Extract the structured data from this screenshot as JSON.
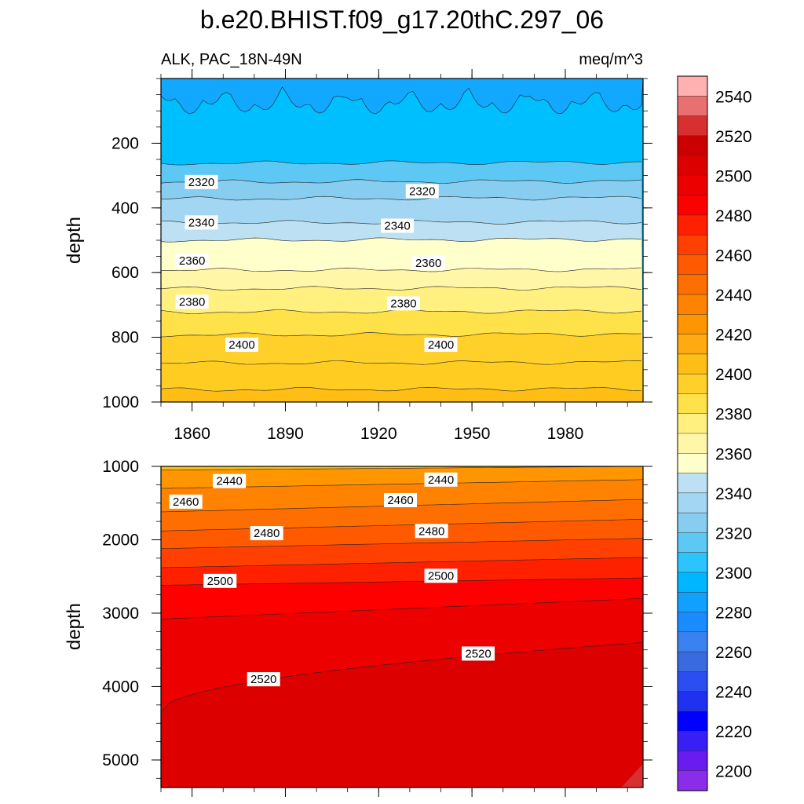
{
  "chart_data": [
    {
      "type": "contour",
      "title": "b.e20.BHIST.f09_g17.20thC.297_06",
      "subtitle_left": "ALK, PAC_18N-49N",
      "subtitle_right": "meq/m^3",
      "xlabel": "",
      "ylabel": "depth",
      "xlim": [
        1850,
        2005
      ],
      "ylim": [
        1000,
        0
      ],
      "x_ticks": [
        1860,
        1890,
        1920,
        1950,
        1980
      ],
      "x_tick_labels": [
        "1860",
        "1890",
        "1920",
        "1950",
        "1980"
      ],
      "y_ticks": [
        200,
        400,
        600,
        800,
        1000
      ],
      "y_tick_labels": [
        "200",
        "400",
        "600",
        "800",
        "1000"
      ],
      "contour_lines": [
        {
          "level": 2320,
          "depth": 262
        },
        {
          "level": 2330,
          "depth": 320
        },
        {
          "level": 2340,
          "depth": 372
        },
        {
          "level": 2350,
          "depth": 446
        },
        {
          "level": 2360,
          "depth": 500
        },
        {
          "level": 2370,
          "depth": 593
        },
        {
          "level": 2380,
          "depth": 650
        },
        {
          "level": 2390,
          "depth": 722
        },
        {
          "level": 2400,
          "depth": 793
        },
        {
          "level": 2410,
          "depth": 880
        },
        {
          "level": 2420,
          "depth": 962
        }
      ],
      "contour_labels": [
        {
          "text": "2320",
          "x": 1863,
          "y": 320
        },
        {
          "text": "2320",
          "x": 1934,
          "y": 348
        },
        {
          "text": "2340",
          "x": 1863,
          "y": 445
        },
        {
          "text": "2340",
          "x": 1926,
          "y": 455
        },
        {
          "text": "2360",
          "x": 1860,
          "y": 563
        },
        {
          "text": "2360",
          "x": 1936,
          "y": 570
        },
        {
          "text": "2380",
          "x": 1860,
          "y": 690
        },
        {
          "text": "2380",
          "x": 1928,
          "y": 695
        },
        {
          "text": "2400",
          "x": 1876,
          "y": 823
        },
        {
          "text": "2400",
          "x": 1940,
          "y": 823
        }
      ]
    },
    {
      "type": "contour",
      "xlabel": "",
      "ylabel": "depth",
      "xlim": [
        1850,
        2005
      ],
      "ylim": [
        5375,
        1000
      ],
      "y_ticks": [
        1000,
        2000,
        3000,
        4000,
        5000
      ],
      "y_tick_labels": [
        "1000",
        "2000",
        "3000",
        "4000",
        "5000"
      ],
      "contour_lines": [
        {
          "level": 2430,
          "depth_start": 1050,
          "depth_end": 1000
        },
        {
          "level": 2440,
          "depth_start": 1300,
          "depth_end": 1180
        },
        {
          "level": 2450,
          "depth_start": 1620,
          "depth_end": 1450
        },
        {
          "level": 2460,
          "depth_start": 1880,
          "depth_end": 1720
        },
        {
          "level": 2470,
          "depth_start": 2120,
          "depth_end": 1980
        },
        {
          "level": 2480,
          "depth_start": 2380,
          "depth_end": 2240
        },
        {
          "level": 2490,
          "depth_start": 2620,
          "depth_end": 2520
        },
        {
          "level": 2500,
          "depth_start": 3080,
          "depth_end": 2800
        },
        {
          "level": 2510,
          "depth_start": 4350,
          "depth_end": 3400
        }
      ],
      "contour_labels": [
        {
          "text": "2440",
          "x": 1872,
          "y": 1200
        },
        {
          "text": "2440",
          "x": 1940,
          "y": 1180
        },
        {
          "text": "2460",
          "x": 1858,
          "y": 1480
        },
        {
          "text": "2460",
          "x": 1927,
          "y": 1460
        },
        {
          "text": "2480",
          "x": 1884,
          "y": 1910
        },
        {
          "text": "2480",
          "x": 1937,
          "y": 1880
        },
        {
          "text": "2500",
          "x": 1869,
          "y": 2560
        },
        {
          "text": "2500",
          "x": 1940,
          "y": 2490
        },
        {
          "text": "2520",
          "x": 1883,
          "y": 3900
        },
        {
          "text": "2520",
          "x": 1952,
          "y": 3550
        }
      ]
    },
    {
      "type": "colorbar",
      "levels": [
        2200,
        2220,
        2240,
        2260,
        2280,
        2300,
        2320,
        2340,
        2360,
        2380,
        2400,
        2420,
        2440,
        2460,
        2480,
        2500,
        2520,
        2540
      ],
      "labels": [
        "2200",
        "2220",
        "2240",
        "2260",
        "2280",
        "2300",
        "2320",
        "2340",
        "2360",
        "2380",
        "2400",
        "2420",
        "2440",
        "2460",
        "2480",
        "2500",
        "2520",
        "2540"
      ],
      "colors": [
        "#8b2ce8",
        "#6a1bf0",
        "#3a1ff5",
        "#0000ff",
        "#1f32f0",
        "#2a4ef0",
        "#3a6ae0",
        "#3b82f0",
        "#1a8cff",
        "#12a0ff",
        "#00b6ff",
        "#2cc4ff",
        "#5ec8f5",
        "#86cdf0",
        "#a2d6f2",
        "#bde1f2",
        "#ffffcc",
        "#fff6a8",
        "#fff080",
        "#ffe24a",
        "#ffd02a",
        "#ffbe16",
        "#ffaa10",
        "#ff9600",
        "#ff8200",
        "#ff6e00",
        "#ff5a00",
        "#ff4000",
        "#ff2000",
        "#ff0000",
        "#ec0000",
        "#dc0000",
        "#cc0000",
        "#d83030",
        "#e87070",
        "#ffb0b0"
      ]
    }
  ]
}
